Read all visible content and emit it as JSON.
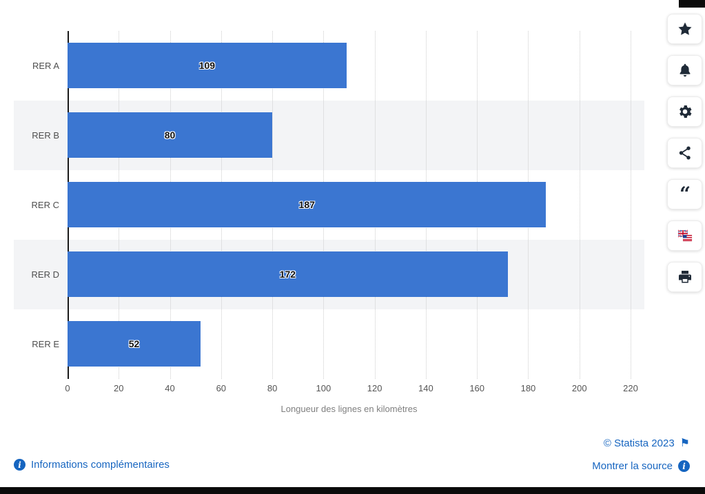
{
  "chart_data": {
    "type": "bar",
    "orientation": "horizontal",
    "title": "",
    "categories": [
      "RER A",
      "RER B",
      "RER C",
      "RER D",
      "RER E"
    ],
    "values": [
      109,
      80,
      187,
      172,
      52
    ],
    "xlabel": "Longueur des lignes en kilomètres",
    "ylabel": "",
    "xlim": [
      0,
      220
    ],
    "xticks": [
      0,
      20,
      40,
      60,
      80,
      100,
      120,
      140,
      160,
      180,
      200,
      220
    ],
    "grid": true,
    "value_labels": true,
    "legend": false
  },
  "colors": {
    "bar": "#3b76d1",
    "stripe": "#f3f4f6",
    "gridline": "#cccccc",
    "axis": "#1a1a1a",
    "link": "#1665c0",
    "icon": "#1f2a37"
  },
  "toolbar": {
    "buttons": [
      {
        "name": "favorite",
        "icon": "star-icon"
      },
      {
        "name": "notifications",
        "icon": "bell-icon"
      },
      {
        "name": "settings",
        "icon": "gear-icon"
      },
      {
        "name": "share",
        "icon": "share-icon"
      },
      {
        "name": "citation",
        "icon": "quote-icon"
      },
      {
        "name": "language",
        "icon": "flags-icon"
      },
      {
        "name": "print",
        "icon": "printer-icon"
      }
    ]
  },
  "footer": {
    "more_info": "Informations complémentaires",
    "copyright": "© Statista 2023",
    "show_source": "Montrer la source",
    "info_icon_glyph": "i",
    "flag_icon_glyph": "⚑"
  }
}
